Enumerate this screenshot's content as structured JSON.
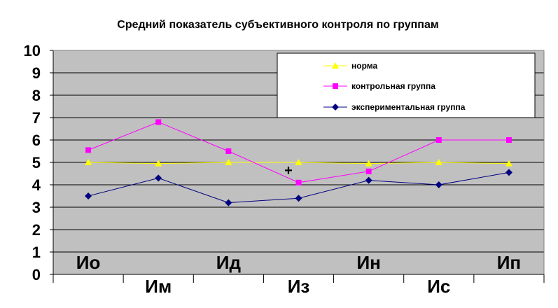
{
  "chart_data": {
    "type": "line",
    "title": "Средний показатель субъективного контроля по группам",
    "xlabel": "",
    "ylabel": "",
    "ylim": [
      0,
      10
    ],
    "yticks": [
      "0",
      "1",
      "2",
      "3",
      "4",
      "5",
      "6",
      "7",
      "8",
      "9",
      "10"
    ],
    "categories": [
      "Ио",
      "Им",
      "Ид",
      "Из",
      "Ин",
      "Ис",
      "Ип"
    ],
    "grid": true,
    "legend_position": "top-right",
    "series": [
      {
        "name": "норма",
        "color": "#ffff00",
        "marker": "triangle",
        "values": [
          5.0,
          4.95,
          5.0,
          5.0,
          4.95,
          5.0,
          4.95
        ]
      },
      {
        "name": "контрольная группа",
        "color": "#ff00ff",
        "marker": "square",
        "values": [
          5.55,
          6.8,
          5.5,
          4.1,
          4.6,
          6.0,
          6.0
        ]
      },
      {
        "name": "экспериментальная группа",
        "color": "#000080",
        "marker": "diamond",
        "values": [
          3.5,
          4.3,
          3.2,
          3.4,
          4.2,
          4.0,
          4.55
        ]
      }
    ],
    "annotation": "+",
    "plot_background": "#c0c0c0"
  }
}
